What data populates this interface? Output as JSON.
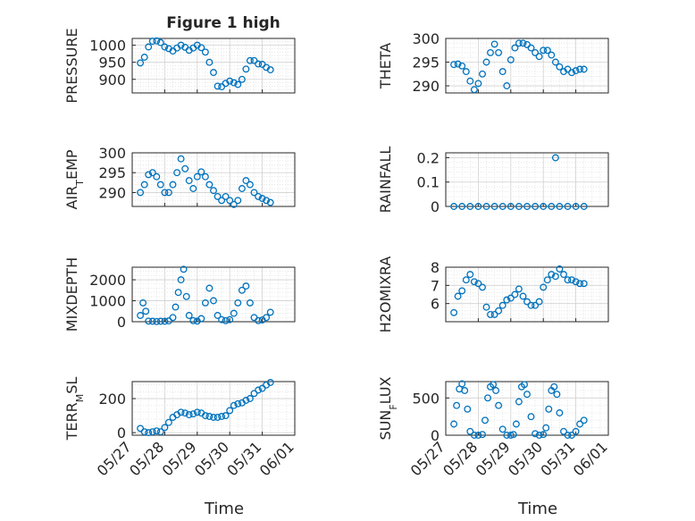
{
  "figure": {
    "title": "Figure 1 high",
    "x_tick_labels": [
      "05/27",
      "05/28",
      "05/29",
      "05/30",
      "05/31",
      "06/01"
    ],
    "marker_color": "#0072BD",
    "grid": "on (major + minor, dotted)",
    "marker": "open circle"
  },
  "chart_data": [
    {
      "type": "scatter",
      "panel": "pressure",
      "ylabel": "PRESSURE",
      "xlabel": "",
      "ylim": [
        860,
        1020
      ],
      "yticks": [
        900,
        950,
        1000
      ],
      "xlim": [
        "05/27",
        "06/01"
      ],
      "x": [
        "05/27 06:00",
        "05/27 09:00",
        "05/27 12:00",
        "05/27 15:00",
        "05/27 18:00",
        "05/27 21:00",
        "05/28 00:00",
        "05/28 03:00",
        "05/28 06:00",
        "05/28 09:00",
        "05/28 12:00",
        "05/28 15:00",
        "05/28 18:00",
        "05/28 21:00",
        "05/29 00:00",
        "05/29 03:00",
        "05/29 06:00",
        "05/29 09:00",
        "05/29 12:00",
        "05/29 15:00",
        "05/29 18:00",
        "05/29 21:00",
        "05/30 00:00",
        "05/30 03:00",
        "05/30 06:00",
        "05/30 09:00",
        "05/30 12:00",
        "05/30 15:00",
        "05/30 18:00",
        "05/30 21:00",
        "05/31 00:00",
        "05/31 03:00",
        "05/31 06:00"
      ],
      "y": [
        948,
        965,
        995,
        1012,
        1013,
        1008,
        995,
        990,
        983,
        992,
        1000,
        994,
        985,
        992,
        1000,
        993,
        980,
        950,
        920,
        880,
        878,
        888,
        895,
        890,
        885,
        900,
        930,
        955,
        955,
        945,
        944,
        935,
        928
      ]
    },
    {
      "type": "scatter",
      "panel": "theta",
      "ylabel": "THETA",
      "xlabel": "",
      "ylim": [
        288.5,
        300
      ],
      "yticks": [
        290,
        295,
        300
      ],
      "xlim": [
        "05/27",
        "06/01"
      ],
      "x": [
        "05/27 06:00",
        "05/27 09:00",
        "05/27 12:00",
        "05/27 15:00",
        "05/27 18:00",
        "05/27 21:00",
        "05/28 00:00",
        "05/28 03:00",
        "05/28 06:00",
        "05/28 09:00",
        "05/28 12:00",
        "05/28 15:00",
        "05/28 18:00",
        "05/28 21:00",
        "05/29 00:00",
        "05/29 03:00",
        "05/29 06:00",
        "05/29 09:00",
        "05/29 12:00",
        "05/29 15:00",
        "05/29 18:00",
        "05/29 21:00",
        "05/30 00:00",
        "05/30 03:00",
        "05/30 06:00",
        "05/30 09:00",
        "05/30 12:00",
        "05/30 15:00",
        "05/30 18:00",
        "05/30 21:00",
        "05/31 00:00",
        "05/31 03:00",
        "05/31 06:00"
      ],
      "y": [
        294.5,
        294.6,
        294.2,
        293,
        291,
        289.2,
        290.5,
        292.5,
        295,
        297,
        298.8,
        297,
        293,
        290,
        295.5,
        298,
        299,
        299,
        298.7,
        298,
        297,
        296.2,
        297.5,
        297.5,
        296.5,
        295,
        294,
        293,
        293.5,
        292.8,
        293.2,
        293.5,
        293.5
      ]
    },
    {
      "type": "scatter",
      "panel": "air_temp",
      "ylabel": "AIR_TEMP",
      "xlabel": "",
      "ylim": [
        286.5,
        300
      ],
      "yticks": [
        290,
        295,
        300
      ],
      "xlim": [
        "05/27",
        "06/01"
      ],
      "x": [
        "05/27 06:00",
        "05/27 09:00",
        "05/27 12:00",
        "05/27 15:00",
        "05/27 18:00",
        "05/27 21:00",
        "05/28 00:00",
        "05/28 03:00",
        "05/28 06:00",
        "05/28 09:00",
        "05/28 12:00",
        "05/28 15:00",
        "05/28 18:00",
        "05/28 21:00",
        "05/29 00:00",
        "05/29 03:00",
        "05/29 06:00",
        "05/29 09:00",
        "05/29 12:00",
        "05/29 15:00",
        "05/29 18:00",
        "05/29 21:00",
        "05/30 00:00",
        "05/30 03:00",
        "05/30 06:00",
        "05/30 09:00",
        "05/30 12:00",
        "05/30 15:00",
        "05/30 18:00",
        "05/30 21:00",
        "05/31 00:00",
        "05/31 03:00",
        "05/31 06:00"
      ],
      "y": [
        290,
        292,
        294.5,
        295,
        294,
        292,
        290,
        290,
        292,
        295,
        298.5,
        296,
        293,
        291,
        294,
        295.2,
        294,
        292,
        290.5,
        289,
        288,
        289,
        288,
        287,
        288,
        291,
        293,
        292,
        290,
        289,
        288.5,
        288,
        287.5
      ]
    },
    {
      "type": "scatter",
      "panel": "rainfall",
      "ylabel": "RAINFALL",
      "xlabel": "",
      "ylim": [
        0,
        0.22
      ],
      "yticks": [
        0,
        0.1,
        0.2
      ],
      "xlim": [
        "05/27",
        "06/01"
      ],
      "x": [
        "05/27 06:00",
        "05/27 12:00",
        "05/27 18:00",
        "05/28 00:00",
        "05/28 06:00",
        "05/28 12:00",
        "05/28 18:00",
        "05/29 00:00",
        "05/29 06:00",
        "05/29 12:00",
        "05/29 18:00",
        "05/30 00:00",
        "05/30 06:00",
        "05/30 09:00",
        "05/30 12:00",
        "05/30 18:00",
        "05/31 00:00",
        "05/31 06:00"
      ],
      "y": [
        0,
        0,
        0,
        0,
        0,
        0,
        0,
        0,
        0,
        0,
        0,
        0,
        0,
        0.2,
        0,
        0,
        0,
        0
      ]
    },
    {
      "type": "scatter",
      "panel": "mixdepth",
      "ylabel": "MIXDEPTH",
      "xlabel": "",
      "ylim": [
        0,
        2600
      ],
      "yticks": [
        0,
        1000,
        2000
      ],
      "xlim": [
        "05/27",
        "06/01"
      ],
      "x": [
        "05/27 06:00",
        "05/27 08:00",
        "05/27 10:00",
        "05/27 12:00",
        "05/27 15:00",
        "05/27 18:00",
        "05/27 21:00",
        "05/28 00:00",
        "05/28 03:00",
        "05/28 06:00",
        "05/28 08:00",
        "05/28 10:00",
        "05/28 12:00",
        "05/28 14:00",
        "05/28 16:00",
        "05/28 18:00",
        "05/28 21:00",
        "05/29 00:00",
        "05/29 03:00",
        "05/29 06:00",
        "05/29 09:00",
        "05/29 12:00",
        "05/29 15:00",
        "05/29 18:00",
        "05/29 21:00",
        "05/30 00:00",
        "05/30 03:00",
        "05/30 06:00",
        "05/30 09:00",
        "05/30 12:00",
        "05/30 15:00",
        "05/30 18:00",
        "05/30 21:00",
        "05/31 00:00",
        "05/31 03:00",
        "05/31 06:00"
      ],
      "y": [
        300,
        900,
        500,
        30,
        20,
        10,
        20,
        20,
        40,
        200,
        700,
        1400,
        2000,
        2500,
        1200,
        300,
        50,
        30,
        150,
        900,
        1600,
        1000,
        300,
        100,
        50,
        100,
        400,
        900,
        1500,
        1700,
        900,
        200,
        50,
        80,
        200,
        450
      ]
    },
    {
      "type": "scatter",
      "panel": "h2omixra",
      "ylabel": "H2OMIXRA",
      "xlabel": "",
      "ylim": [
        5,
        8
      ],
      "yticks": [
        6,
        7,
        8
      ],
      "xlim": [
        "05/27",
        "06/01"
      ],
      "x": [
        "05/27 06:00",
        "05/27 09:00",
        "05/27 12:00",
        "05/27 15:00",
        "05/27 18:00",
        "05/27 21:00",
        "05/28 00:00",
        "05/28 03:00",
        "05/28 06:00",
        "05/28 09:00",
        "05/28 12:00",
        "05/28 15:00",
        "05/28 18:00",
        "05/28 21:00",
        "05/29 00:00",
        "05/29 03:00",
        "05/29 06:00",
        "05/29 09:00",
        "05/29 12:00",
        "05/29 15:00",
        "05/29 18:00",
        "05/29 21:00",
        "05/30 00:00",
        "05/30 03:00",
        "05/30 06:00",
        "05/30 09:00",
        "05/30 12:00",
        "05/30 15:00",
        "05/30 18:00",
        "05/30 21:00",
        "05/31 00:00",
        "05/31 03:00",
        "05/31 06:00"
      ],
      "y": [
        5.5,
        6.4,
        6.7,
        7.3,
        7.6,
        7.2,
        7.1,
        6.9,
        5.8,
        5.4,
        5.4,
        5.6,
        5.9,
        6.2,
        6.3,
        6.5,
        6.8,
        6.4,
        6.1,
        5.9,
        5.9,
        6.1,
        6.9,
        7.3,
        7.6,
        7.5,
        7.9,
        7.6,
        7.3,
        7.3,
        7.2,
        7.1,
        7.1
      ]
    },
    {
      "type": "scatter",
      "panel": "terr_msl",
      "ylabel": "TERR_MSL",
      "xlabel": "Time",
      "ylim": [
        -15,
        300
      ],
      "yticks": [
        0,
        200
      ],
      "xlim": [
        "05/27",
        "06/01"
      ],
      "x": [
        "05/27 06:00",
        "05/27 09:00",
        "05/27 12:00",
        "05/27 15:00",
        "05/27 18:00",
        "05/27 21:00",
        "05/28 00:00",
        "05/28 03:00",
        "05/28 06:00",
        "05/28 09:00",
        "05/28 12:00",
        "05/28 15:00",
        "05/28 18:00",
        "05/28 21:00",
        "05/29 00:00",
        "05/29 03:00",
        "05/29 06:00",
        "05/29 09:00",
        "05/29 12:00",
        "05/29 15:00",
        "05/29 18:00",
        "05/29 21:00",
        "05/30 00:00",
        "05/30 03:00",
        "05/30 06:00",
        "05/30 09:00",
        "05/30 12:00",
        "05/30 15:00",
        "05/30 18:00",
        "05/30 21:00",
        "05/31 00:00",
        "05/31 03:00",
        "05/31 06:00"
      ],
      "y": [
        25,
        5,
        0,
        5,
        10,
        5,
        30,
        60,
        90,
        105,
        120,
        115,
        105,
        110,
        120,
        115,
        100,
        95,
        90,
        90,
        95,
        100,
        130,
        160,
        170,
        175,
        190,
        200,
        230,
        250,
        260,
        280,
        295
      ]
    },
    {
      "type": "scatter",
      "panel": "sun_flux",
      "ylabel": "SUN_FLUX",
      "xlabel": "Time",
      "ylim": [
        0,
        720
      ],
      "yticks": [
        0,
        500
      ],
      "xlim": [
        "05/27",
        "06/01"
      ],
      "x": [
        "05/27 06:00",
        "05/27 08:00",
        "05/27 10:00",
        "05/27 12:00",
        "05/27 14:00",
        "05/27 16:00",
        "05/27 18:00",
        "05/27 21:00",
        "05/28 00:00",
        "05/28 03:00",
        "05/28 05:00",
        "05/28 07:00",
        "05/28 09:00",
        "05/28 11:00",
        "05/28 13:00",
        "05/28 15:00",
        "05/28 18:00",
        "05/28 21:00",
        "05/29 00:00",
        "05/29 02:00",
        "05/29 04:00",
        "05/29 06:00",
        "05/29 08:00",
        "05/29 10:00",
        "05/29 12:00",
        "05/29 15:00",
        "05/29 18:00",
        "05/29 21:00",
        "05/30 00:00",
        "05/30 02:00",
        "05/30 04:00",
        "05/30 06:00",
        "05/30 08:00",
        "05/30 10:00",
        "05/30 12:00",
        "05/30 15:00",
        "05/30 18:00",
        "05/30 21:00",
        "05/31 00:00",
        "05/31 03:00",
        "05/31 06:00"
      ],
      "y": [
        150,
        400,
        620,
        690,
        600,
        350,
        50,
        0,
        0,
        10,
        200,
        500,
        650,
        680,
        600,
        400,
        80,
        0,
        0,
        10,
        150,
        450,
        650,
        680,
        550,
        250,
        20,
        0,
        10,
        100,
        350,
        600,
        650,
        550,
        300,
        50,
        0,
        0,
        50,
        150,
        200
      ]
    }
  ]
}
